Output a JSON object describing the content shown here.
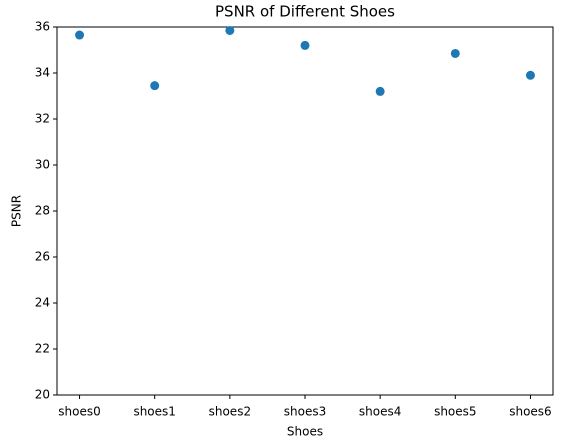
{
  "chart_data": {
    "type": "scatter",
    "title": "PSNR of Different Shoes",
    "x_label": "Shoes",
    "y_label": "PSNR",
    "categories": [
      "shoes0",
      "shoes1",
      "shoes2",
      "shoes3",
      "shoes4",
      "shoes5",
      "shoes6"
    ],
    "values": [
      35.65,
      33.45,
      35.85,
      35.2,
      33.2,
      34.85,
      33.9
    ],
    "color": "#1f77b4",
    "ylim": [
      20,
      36
    ],
    "yticks": [
      20,
      22,
      24,
      26,
      28,
      30,
      32,
      34,
      36
    ],
    "grid": false
  }
}
